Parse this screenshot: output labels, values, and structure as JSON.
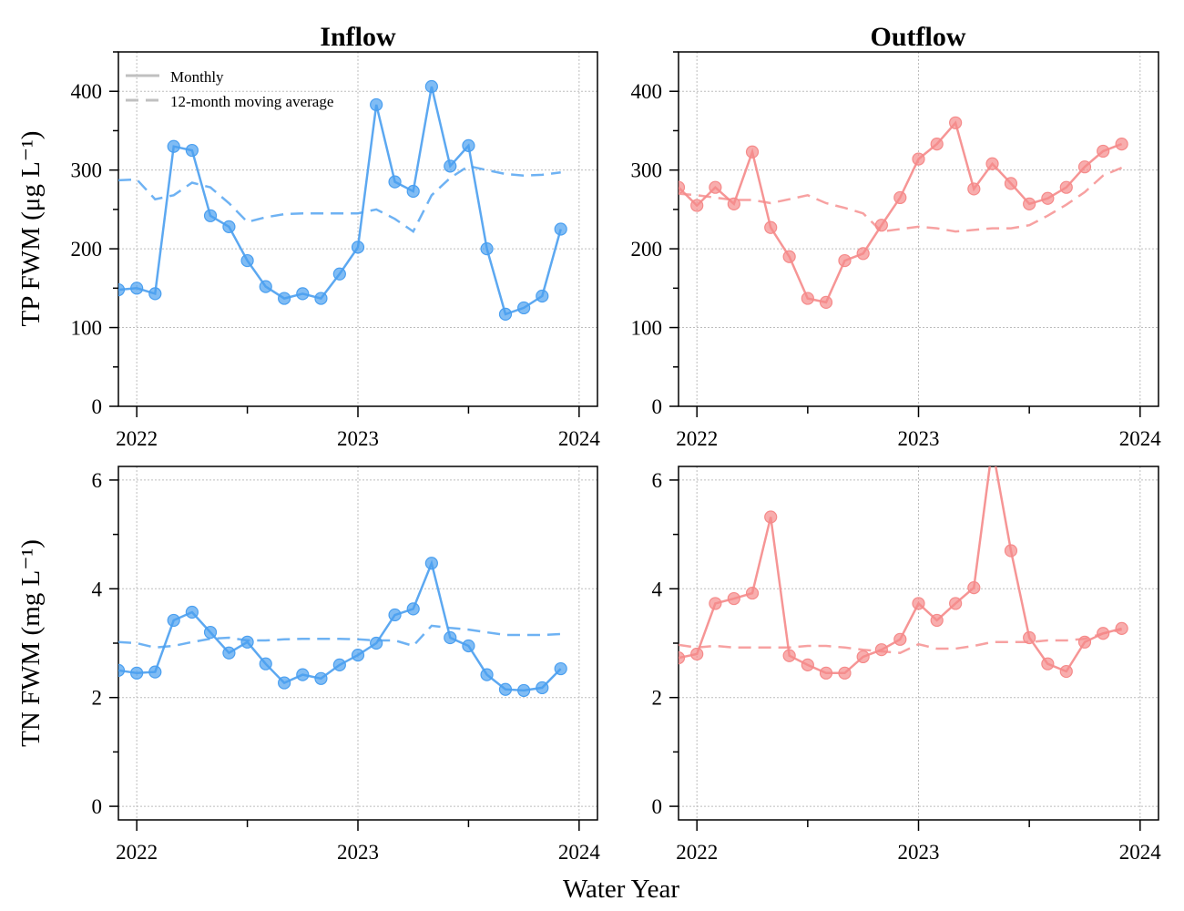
{
  "figure": {
    "xlabel": "Water Year",
    "x_tick_labels": [
      "2022",
      "2023",
      "2024"
    ],
    "legend": {
      "monthly_label": "Monthly",
      "moving_avg_label": "12-month moving average"
    },
    "colors": {
      "inflow": "#4a9ff0",
      "outflow": "#f58a8a",
      "legend": "#c0c0c0"
    }
  },
  "chart_data": [
    {
      "type": "line",
      "title": "Inflow",
      "ylabel": "TP FWM (μg L⁻¹)",
      "ylim": [
        0,
        450
      ],
      "y_ticks": [
        0,
        100,
        200,
        300,
        400
      ],
      "xlim": [
        2021.917,
        2024.083
      ],
      "grid": true,
      "legend_position": "top-left",
      "color": "#4a9ff0",
      "series": [
        {
          "name": "Monthly",
          "style": "solid-markers",
          "x": [
            2021.917,
            2022.0,
            2022.083,
            2022.167,
            2022.25,
            2022.333,
            2022.417,
            2022.5,
            2022.583,
            2022.667,
            2022.75,
            2022.833,
            2022.917,
            2023.0,
            2023.083,
            2023.167,
            2023.25,
            2023.333,
            2023.417,
            2023.5,
            2023.583,
            2023.667,
            2023.75,
            2023.833,
            2023.917
          ],
          "values": [
            148,
            150,
            143,
            330,
            325,
            242,
            228,
            185,
            152,
            137,
            143,
            137,
            168,
            202,
            383,
            285,
            273,
            406,
            305,
            331,
            200,
            117,
            125,
            140,
            225
          ]
        },
        {
          "name": "12-month moving average",
          "style": "dashed",
          "x": [
            2021.917,
            2022.0,
            2022.083,
            2022.167,
            2022.25,
            2022.333,
            2022.417,
            2022.5,
            2022.583,
            2022.667,
            2022.75,
            2022.833,
            2022.917,
            2023.0,
            2023.083,
            2023.167,
            2023.25,
            2023.333,
            2023.417,
            2023.5,
            2023.583,
            2023.667,
            2023.75,
            2023.833,
            2023.917
          ],
          "values": [
            287,
            288,
            263,
            268,
            284,
            278,
            258,
            234,
            240,
            244,
            245,
            245,
            245,
            245,
            250,
            238,
            222,
            268,
            290,
            305,
            300,
            295,
            293,
            294,
            297
          ]
        }
      ]
    },
    {
      "type": "line",
      "title": "Outflow",
      "ylabel": "",
      "ylim": [
        0,
        450
      ],
      "y_ticks": [
        0,
        100,
        200,
        300,
        400
      ],
      "xlim": [
        2021.917,
        2024.083
      ],
      "grid": true,
      "color": "#f58a8a",
      "series": [
        {
          "name": "Monthly",
          "style": "solid-markers",
          "x": [
            2021.917,
            2022.0,
            2022.083,
            2022.167,
            2022.25,
            2022.333,
            2022.417,
            2022.5,
            2022.583,
            2022.667,
            2022.75,
            2022.833,
            2022.917,
            2023.0,
            2023.083,
            2023.167,
            2023.25,
            2023.333,
            2023.417,
            2023.5,
            2023.583,
            2023.667,
            2023.75,
            2023.833,
            2023.917
          ],
          "values": [
            278,
            255,
            278,
            257,
            323,
            227,
            190,
            137,
            132,
            185,
            194,
            230,
            265,
            314,
            333,
            360,
            276,
            308,
            283,
            257,
            264,
            278,
            304,
            324,
            333
          ]
        },
        {
          "name": "12-month moving average",
          "style": "dashed",
          "x": [
            2021.917,
            2022.0,
            2022.083,
            2022.167,
            2022.25,
            2022.333,
            2022.417,
            2022.5,
            2022.583,
            2022.667,
            2022.75,
            2022.833,
            2022.917,
            2023.0,
            2023.083,
            2023.167,
            2023.25,
            2023.333,
            2023.417,
            2023.5,
            2023.583,
            2023.667,
            2023.75,
            2023.833,
            2023.917
          ],
          "values": [
            270,
            268,
            265,
            262,
            262,
            258,
            263,
            268,
            258,
            252,
            245,
            222,
            225,
            228,
            226,
            222,
            224,
            226,
            226,
            230,
            242,
            256,
            272,
            293,
            303
          ]
        }
      ]
    },
    {
      "type": "line",
      "title": "",
      "ylabel": "TN FWM (mg L⁻¹)",
      "ylim": [
        -0.25,
        6.25
      ],
      "y_ticks": [
        0,
        2,
        4,
        6
      ],
      "xlim": [
        2021.917,
        2024.083
      ],
      "grid": true,
      "color": "#4a9ff0",
      "series": [
        {
          "name": "Monthly",
          "style": "solid-markers",
          "x": [
            2021.917,
            2022.0,
            2022.083,
            2022.167,
            2022.25,
            2022.333,
            2022.417,
            2022.5,
            2022.583,
            2022.667,
            2022.75,
            2022.833,
            2022.917,
            2023.0,
            2023.083,
            2023.167,
            2023.25,
            2023.333,
            2023.417,
            2023.5,
            2023.583,
            2023.667,
            2023.75,
            2023.833,
            2023.917
          ],
          "values": [
            2.5,
            2.45,
            2.47,
            3.42,
            3.57,
            3.2,
            2.82,
            3.02,
            2.62,
            2.27,
            2.42,
            2.35,
            2.6,
            2.78,
            3.0,
            3.52,
            3.63,
            4.47,
            3.1,
            2.95,
            2.42,
            2.15,
            2.13,
            2.18,
            2.53
          ]
        },
        {
          "name": "12-month moving average",
          "style": "dashed",
          "x": [
            2021.917,
            2022.0,
            2022.083,
            2022.167,
            2022.25,
            2022.333,
            2022.417,
            2022.5,
            2022.583,
            2022.667,
            2022.75,
            2022.833,
            2022.917,
            2023.0,
            2023.083,
            2023.167,
            2023.25,
            2023.333,
            2023.417,
            2023.5,
            2023.583,
            2023.667,
            2023.75,
            2023.833,
            2023.917
          ],
          "values": [
            3.02,
            3.0,
            2.92,
            2.95,
            3.02,
            3.08,
            3.1,
            3.05,
            3.05,
            3.07,
            3.08,
            3.08,
            3.08,
            3.07,
            3.05,
            3.05,
            2.95,
            3.32,
            3.28,
            3.25,
            3.2,
            3.15,
            3.15,
            3.15,
            3.17
          ]
        }
      ]
    },
    {
      "type": "line",
      "title": "",
      "ylabel": "",
      "ylim": [
        -0.25,
        6.25
      ],
      "y_ticks": [
        0,
        2,
        4,
        6
      ],
      "xlim": [
        2021.917,
        2024.083
      ],
      "grid": true,
      "color": "#f58a8a",
      "series": [
        {
          "name": "Monthly",
          "style": "solid-markers",
          "x": [
            2021.917,
            2022.0,
            2022.083,
            2022.167,
            2022.25,
            2022.333,
            2022.417,
            2022.5,
            2022.583,
            2022.667,
            2022.75,
            2022.833,
            2022.917,
            2023.0,
            2023.083,
            2023.167,
            2023.25,
            2023.333,
            2023.417,
            2023.5,
            2023.583,
            2023.667,
            2023.75,
            2023.833,
            2023.917
          ],
          "values": [
            2.73,
            2.8,
            3.73,
            3.82,
            3.92,
            5.32,
            2.77,
            2.6,
            2.45,
            2.45,
            2.75,
            2.88,
            3.07,
            3.73,
            3.42,
            3.73,
            4.02,
            6.6,
            4.7,
            3.1,
            2.62,
            2.48,
            3.02,
            3.18,
            3.27
          ]
        },
        {
          "name": "12-month moving average",
          "style": "dashed",
          "x": [
            2021.917,
            2022.0,
            2022.083,
            2022.167,
            2022.25,
            2022.333,
            2022.417,
            2022.5,
            2022.583,
            2022.667,
            2022.75,
            2022.833,
            2022.917,
            2023.0,
            2023.083,
            2023.167,
            2023.25,
            2023.333,
            2023.417,
            2023.5,
            2023.583,
            2023.667,
            2023.75,
            2023.833,
            2023.917
          ],
          "values": [
            2.97,
            2.92,
            2.95,
            2.92,
            2.92,
            2.92,
            2.92,
            2.95,
            2.95,
            2.92,
            2.88,
            2.85,
            2.82,
            2.98,
            2.9,
            2.9,
            2.95,
            3.02,
            3.02,
            3.02,
            3.05,
            3.05,
            3.08,
            3.18,
            3.25
          ]
        }
      ]
    }
  ]
}
